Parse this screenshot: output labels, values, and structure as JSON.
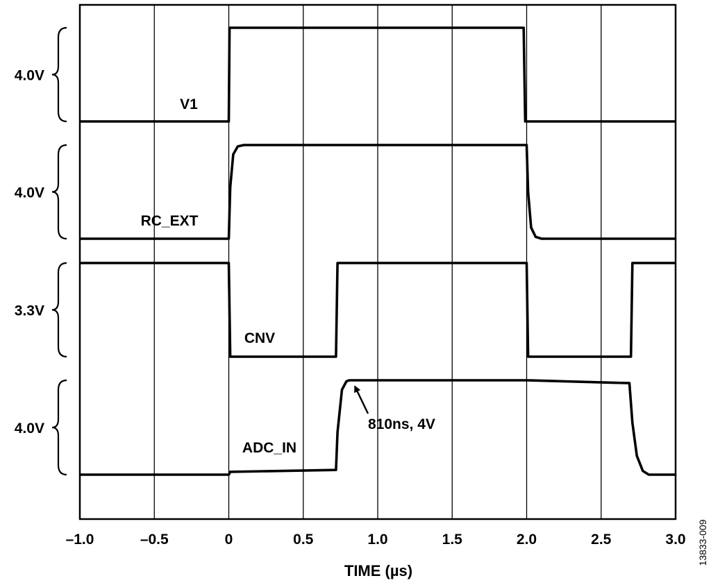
{
  "figure_id": "13833-009",
  "chart_data": {
    "type": "line",
    "xlabel": "TIME (µs)",
    "xlim": [
      -1.0,
      3.0
    ],
    "xticks": [
      -1.0,
      -0.5,
      0,
      0.5,
      1.0,
      1.5,
      2.0,
      2.5,
      3.0
    ],
    "xtick_labels": [
      "–1.0",
      "–0.5",
      "0",
      "0.5",
      "1.0",
      "1.5",
      "2.0",
      "2.5",
      "3.0"
    ],
    "grid": true,
    "series": [
      {
        "name": "V1",
        "scale_label": "4.0V",
        "x": [
          -1.0,
          0.0,
          0.005,
          1.98,
          1.99,
          3.0
        ],
        "y": [
          0,
          0,
          1,
          1,
          0,
          0
        ]
      },
      {
        "name": "RC_EXT",
        "scale_label": "4.0V",
        "x": [
          -1.0,
          0.0,
          0.01,
          0.03,
          0.06,
          0.1,
          2.0,
          2.01,
          2.03,
          2.06,
          2.1,
          3.0
        ],
        "y": [
          0,
          0,
          0.55,
          0.9,
          0.985,
          1,
          1,
          0.5,
          0.12,
          0.02,
          0,
          0
        ]
      },
      {
        "name": "CNV",
        "scale_label": "3.3V",
        "x": [
          -1.0,
          0.0,
          0.01,
          0.72,
          0.73,
          2.0,
          2.01,
          2.7,
          2.71,
          3.0
        ],
        "y": [
          1,
          1,
          0,
          0,
          1,
          1,
          0,
          0,
          1,
          1
        ]
      },
      {
        "name": "ADC_IN",
        "scale_label": "4.0V",
        "x": [
          -1.0,
          0.0,
          0.01,
          0.72,
          0.73,
          0.76,
          0.79,
          0.81,
          0.85,
          2.0,
          2.69,
          2.71,
          2.74,
          2.78,
          2.82,
          3.0
        ],
        "y": [
          0,
          0,
          0.03,
          0.05,
          0.45,
          0.9,
          0.99,
          1,
          1,
          1,
          0.97,
          0.55,
          0.2,
          0.04,
          0,
          0
        ]
      }
    ],
    "annotations": [
      {
        "text": "810ns, 4V",
        "x": 0.81,
        "series": "ADC_IN"
      }
    ]
  }
}
